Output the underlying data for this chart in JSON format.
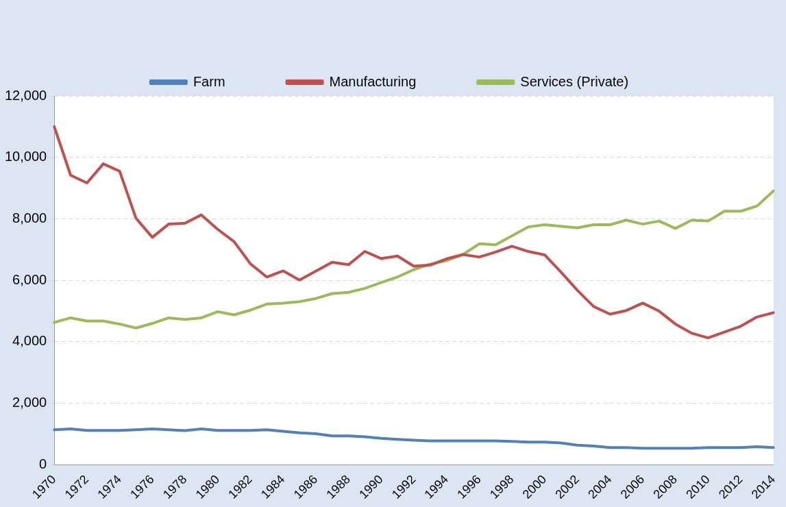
{
  "chart_data": {
    "type": "line",
    "categories": [
      "1970",
      null,
      "1972",
      null,
      "1974",
      null,
      "1976",
      null,
      "1978",
      null,
      "1980",
      null,
      "1982",
      null,
      "1984",
      null,
      "1986",
      null,
      "1988",
      null,
      "1990",
      null,
      "1992",
      null,
      "1994",
      null,
      "1996",
      null,
      "1998",
      null,
      "2000",
      null,
      "2002",
      null,
      "2004",
      null,
      "2006",
      null,
      "2008",
      null,
      "2010",
      null,
      "2012",
      null,
      "2014"
    ],
    "series": [
      {
        "name": "Farm",
        "color": "#4f81bd",
        "values": [
          1140,
          1170,
          1120,
          1120,
          1120,
          1140,
          1170,
          1140,
          1110,
          1170,
          1120,
          1120,
          1120,
          1140,
          1090,
          1040,
          1010,
          940,
          940,
          910,
          860,
          830,
          800,
          780,
          780,
          780,
          780,
          780,
          760,
          740,
          740,
          710,
          640,
          610,
          560,
          560,
          540,
          540,
          540,
          540,
          560,
          560,
          560,
          590,
          560
        ]
      },
      {
        "name": "Manufacturing",
        "color": "#c0504d",
        "values": [
          11000,
          9420,
          9170,
          9790,
          9550,
          8020,
          7400,
          7830,
          7860,
          8130,
          7660,
          7260,
          6540,
          6110,
          6310,
          6010,
          6300,
          6590,
          6510,
          6940,
          6710,
          6790,
          6460,
          6500,
          6700,
          6840,
          6760,
          6920,
          7110,
          6940,
          6830,
          6270,
          5680,
          5150,
          4900,
          5020,
          5260,
          5000,
          4580,
          4280,
          4130,
          4320,
          4510,
          4810,
          4950
        ]
      },
      {
        "name": "Services (Private)",
        "color": "#9bbb59",
        "values": [
          4630,
          4780,
          4680,
          4680,
          4580,
          4450,
          4600,
          4780,
          4730,
          4780,
          4980,
          4880,
          5030,
          5230,
          5260,
          5310,
          5410,
          5570,
          5610,
          5740,
          5930,
          6110,
          6350,
          6530,
          6640,
          6840,
          7190,
          7160,
          7450,
          7740,
          7810,
          7760,
          7710,
          7810,
          7810,
          7960,
          7830,
          7930,
          7690,
          7960,
          7930,
          8250,
          8250,
          8420,
          8910
        ]
      }
    ],
    "ylim": [
      0,
      12000
    ],
    "yticks": [
      {
        "value": 0,
        "label": "0"
      },
      {
        "value": 2000,
        "label": "2,000"
      },
      {
        "value": 4000,
        "label": "4,000"
      },
      {
        "value": 6000,
        "label": "6,000"
      },
      {
        "value": 8000,
        "label": "8,000"
      },
      {
        "value": 10000,
        "label": "10,000"
      },
      {
        "value": 12000,
        "label": "12,000"
      }
    ],
    "grid": "y",
    "legend": "top",
    "marker": "none",
    "line_style": "solid"
  }
}
